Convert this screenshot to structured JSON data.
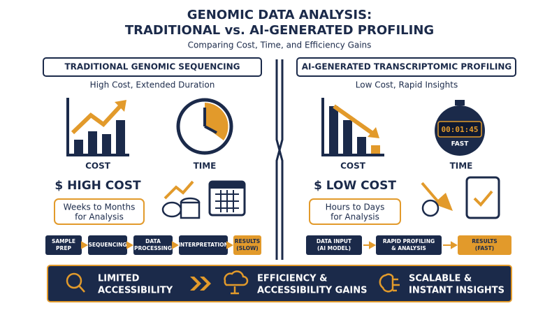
{
  "header": {
    "title": [
      "GENOMIC DATA ANALYSIS:",
      "TRADITIONAL vs. AI-GENERATED PROFILING"
    ],
    "subtitle": "Comparing Cost, Time, and Efficiency Gains"
  },
  "left": {
    "heading": "TRADITIONAL GENOMIC SEQUENCING",
    "subheading": "High Cost, Extended Duration",
    "cost_label": "COST",
    "time_label": "TIME",
    "cost_summary": "$ HIGH COST",
    "duration": [
      "Weeks to Months",
      "for Analysis"
    ],
    "steps": [
      [
        "SAMPLE",
        "PREP"
      ],
      [
        "SEQUENCING"
      ],
      [
        "DATA",
        "PROCESSING"
      ],
      [
        "INTERPRETATION"
      ],
      [
        "RESULTS",
        "(SLOW)"
      ]
    ]
  },
  "right": {
    "heading": "AI-GENERATED TRANSCRIPTOMIC PROFILING",
    "subheading": "Low Cost, Rapid Insights",
    "cost_label": "COST",
    "time_label": "TIME",
    "timer": "00:01:45",
    "timer_caption": "FAST",
    "cost_summary": "$ LOW COST",
    "duration": [
      "Hours to Days",
      "for Analysis"
    ],
    "steps": [
      [
        "DATA INPUT",
        "(AI MODEL)"
      ],
      [
        "RAPID PROFILING",
        "& ANALYSIS"
      ],
      [
        "RESULTS",
        "(FAST)"
      ]
    ]
  },
  "banner": {
    "items": [
      [
        "LIMITED",
        "ACCESSIBILITY"
      ],
      [
        "EFFICIENCY &",
        "ACCESSIBILITY GAINS"
      ],
      [
        "SCALABLE &",
        "INSTANT INSIGHTS"
      ]
    ]
  }
}
